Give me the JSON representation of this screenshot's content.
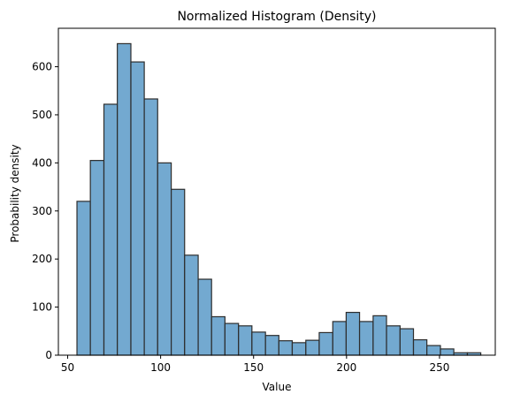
{
  "chart_data": {
    "type": "bar",
    "title": "Normalized Histogram (Density)",
    "xlabel": "Value",
    "ylabel": "Probability density",
    "xlim": [
      45,
      280
    ],
    "ylim": [
      0,
      680
    ],
    "xticks": [
      50,
      100,
      150,
      200,
      250
    ],
    "yticks": [
      0,
      100,
      200,
      300,
      400,
      500,
      600
    ],
    "grid": false,
    "bar_color": "#5a9ac8",
    "edge_color": "#2d2d2d",
    "bin_edges": [
      55.0,
      62.2,
      69.5,
      76.7,
      84.0,
      91.2,
      98.4,
      105.7,
      112.9,
      120.2,
      127.4,
      134.6,
      141.9,
      149.1,
      156.4,
      163.6,
      170.8,
      178.1,
      185.3,
      192.6,
      199.8,
      207.0,
      214.3,
      221.5,
      228.8,
      236.0,
      243.2,
      250.5,
      257.7,
      265.0,
      272.2
    ],
    "values": [
      320,
      405,
      522,
      648,
      610,
      533,
      400,
      345,
      208,
      158,
      80,
      66,
      61,
      48,
      41,
      30,
      26,
      31,
      47,
      70,
      89,
      70,
      82,
      61,
      55,
      32,
      20,
      13,
      5,
      5
    ]
  }
}
